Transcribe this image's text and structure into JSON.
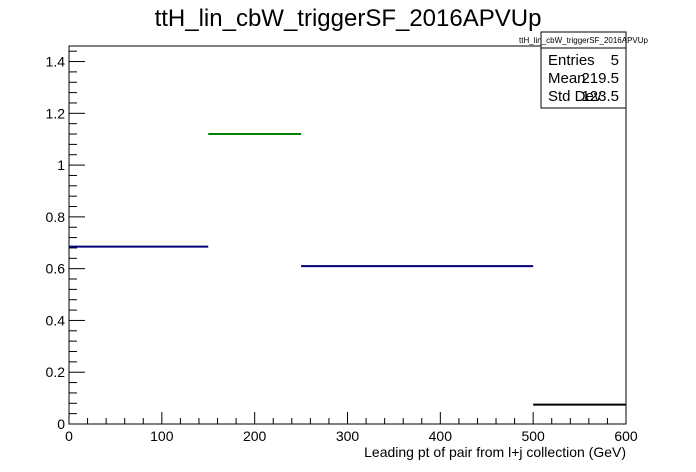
{
  "chart_data": {
    "type": "histogram",
    "title": "ttH_lin_cbW_triggerSF_2016APVUp",
    "xlabel": "Leading pt of pair from l+j collection (GeV)",
    "ylabel": "",
    "xlim": [
      0,
      600
    ],
    "ylim": [
      0,
      1.46
    ],
    "x_ticks": [
      "0",
      "100",
      "200",
      "300",
      "400",
      "500",
      "600"
    ],
    "y_ticks": [
      "0",
      "0.2",
      "0.4",
      "0.6",
      "0.8",
      "1",
      "1.2",
      "1.4"
    ],
    "bins": [
      {
        "x0": 0,
        "x1": 150,
        "y": 0.685,
        "color": "#00007f"
      },
      {
        "x0": 150,
        "x1": 250,
        "y": 1.12,
        "color": "#007f00"
      },
      {
        "x0": 250,
        "x1": 500,
        "y": 0.61,
        "color": "#00007f"
      },
      {
        "x0": 500,
        "x1": 600,
        "y": 0.075,
        "color": "#000000"
      }
    ],
    "stats": {
      "name": "ttH_lin_cbW_triggerSF_2016APVUp",
      "rows": [
        {
          "label": "Entries",
          "value": "5"
        },
        {
          "label": "Mean",
          "value": "219.5"
        },
        {
          "label": "Std Dev",
          "value": "123.5"
        }
      ]
    }
  }
}
